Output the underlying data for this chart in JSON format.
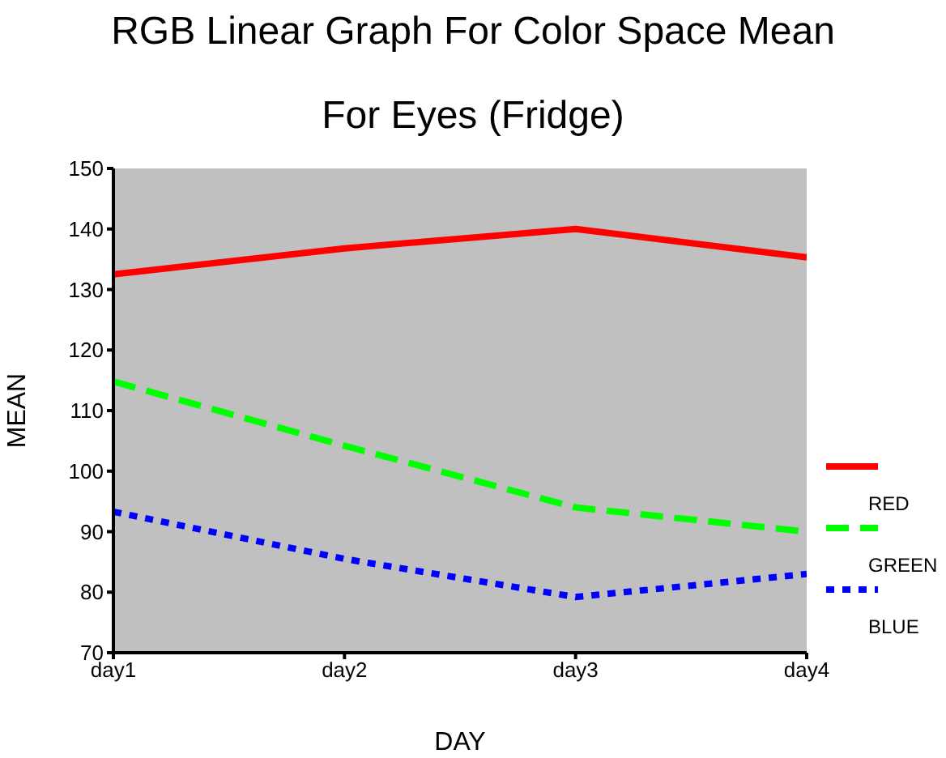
{
  "chart_data": {
    "type": "line",
    "title": "RGB Linear Graph For Color Space Mean",
    "subtitle": "For Eyes (Fridge)",
    "xlabel": "DAY",
    "ylabel": "MEAN",
    "categories": [
      "day1",
      "day2",
      "day3",
      "day4"
    ],
    "series": [
      {
        "name": "RED",
        "color": "#ff0000",
        "line_style": "solid",
        "values": [
          132.5,
          136.8,
          140,
          135.3
        ]
      },
      {
        "name": "GREEN",
        "color": "#00ff00",
        "line_style": "dashed",
        "values": [
          114.8,
          104.2,
          94,
          90
        ]
      },
      {
        "name": "BLUE",
        "color": "#0000ff",
        "line_style": "dotted",
        "values": [
          93.3,
          85.5,
          79.2,
          83
        ]
      }
    ],
    "ylim": [
      70,
      150
    ],
    "yticks": [
      70,
      80,
      90,
      100,
      110,
      120,
      130,
      140,
      150
    ],
    "grid": false,
    "legend": "right",
    "marker": "none"
  }
}
